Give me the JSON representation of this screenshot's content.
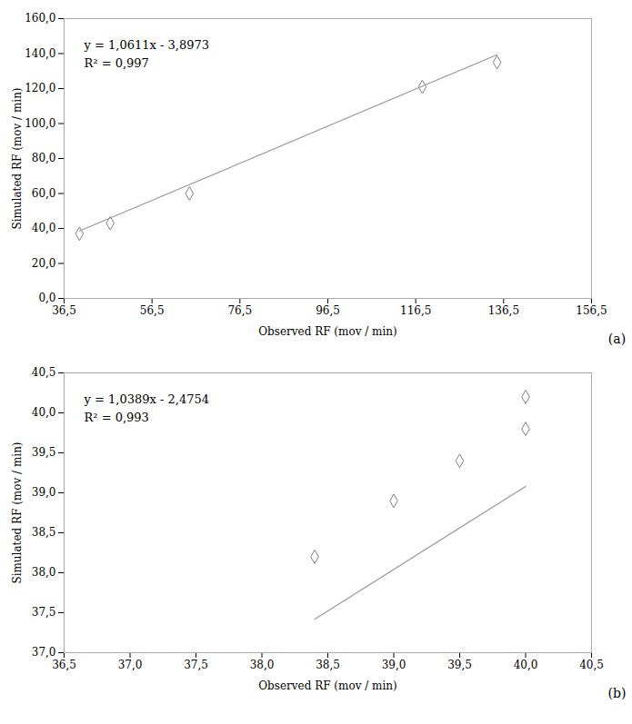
{
  "chart_data": [
    {
      "type": "scatter",
      "x_label": "Observed RF (mov / min)",
      "y_label": "Simulated RF (mov / min)",
      "series": [
        {
          "type": "scatter",
          "marker": "diamond",
          "color": "#808080",
          "x": [
            40,
            47,
            65,
            118,
            135
          ],
          "values": [
            37,
            43,
            60,
            121,
            135
          ]
        },
        {
          "type": "line",
          "color": "#999999",
          "x": [
            40,
            135
          ],
          "values": [
            38.5467,
            139.3512
          ]
        }
      ],
      "annotations": [
        "y = 1,0611x - 3,8973",
        "R² = 0,997",
        "(a)"
      ],
      "xlim": [
        36.5,
        156.5
      ],
      "ylim": [
        0.0,
        160.0
      ],
      "xticks": [
        {
          "value": 36.5,
          "label": "36,5"
        },
        {
          "value": 56.5,
          "label": "56,5"
        },
        {
          "value": 76.5,
          "label": "76,5"
        },
        {
          "value": 96.5,
          "label": "96,5"
        },
        {
          "value": 116.5,
          "label": "116,5"
        },
        {
          "value": 136.5,
          "label": "136,5"
        },
        {
          "value": 156.5,
          "label": "156,5"
        }
      ],
      "yticks": [
        {
          "value": 0.0,
          "label": "0,0"
        },
        {
          "value": 20.0,
          "label": "20,0"
        },
        {
          "value": 40.0,
          "label": "40,0"
        },
        {
          "value": 60.0,
          "label": "60,0"
        },
        {
          "value": 80.0,
          "label": "80,0"
        },
        {
          "value": 100.0,
          "label": "100,0"
        },
        {
          "value": 120.0,
          "label": "120,0"
        },
        {
          "value": 140.0,
          "label": "140,0"
        },
        {
          "value": 160.0,
          "label": "160,0"
        }
      ],
      "grid": false
    },
    {
      "type": "scatter",
      "x_label": "Observed RF (mov / min)",
      "y_label": "Simulated RF (mov / min)",
      "series": [
        {
          "type": "scatter",
          "marker": "diamond",
          "color": "#808080",
          "x": [
            38.4,
            39.0,
            39.5,
            40.0,
            40.0
          ],
          "values": [
            38.2,
            38.9,
            39.4,
            39.8,
            40.2
          ]
        },
        {
          "type": "line",
          "color": "#999999",
          "x": [
            38.4,
            40.0
          ],
          "values": [
            37.41836,
            39.0806
          ]
        }
      ],
      "annotations": [
        "y = 1,0389x - 2,4754",
        "R² = 0,993",
        "(b)"
      ],
      "xlim": [
        36.5,
        40.5
      ],
      "ylim": [
        37.0,
        40.5
      ],
      "xticks": [
        {
          "value": 36.5,
          "label": "36,5"
        },
        {
          "value": 37.0,
          "label": "37,0"
        },
        {
          "value": 37.5,
          "label": "37,5"
        },
        {
          "value": 38.0,
          "label": "38,0"
        },
        {
          "value": 38.5,
          "label": "38,5"
        },
        {
          "value": 39.0,
          "label": "39,0"
        },
        {
          "value": 39.5,
          "label": "39,5"
        },
        {
          "value": 40.0,
          "label": "40,0"
        },
        {
          "value": 40.5,
          "label": "40,5"
        }
      ],
      "yticks": [
        {
          "value": 37.0,
          "label": "37,0"
        },
        {
          "value": 37.5,
          "label": "37,5"
        },
        {
          "value": 38.0,
          "label": "38,0"
        },
        {
          "value": 38.5,
          "label": "38,5"
        },
        {
          "value": 39.0,
          "label": "39,0"
        },
        {
          "value": 39.5,
          "label": "39,5"
        },
        {
          "value": 40.0,
          "label": "40,0"
        },
        {
          "value": 40.5,
          "label": "40,5"
        }
      ],
      "grid": false
    }
  ]
}
